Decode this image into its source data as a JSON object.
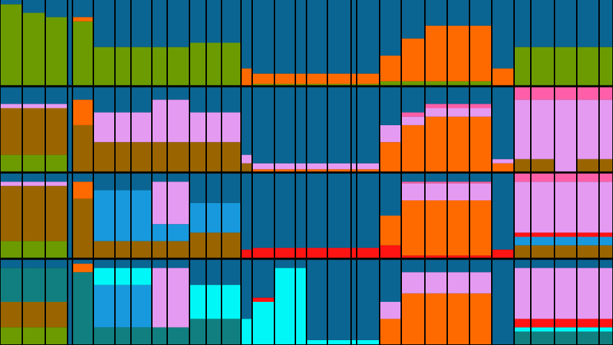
{
  "chart_data": [
    {
      "type": "stacked-bar",
      "ylim": [
        0,
        1
      ],
      "series": [
        {
          "color": "#6b9b00",
          "values": [
            0.95,
            0.85,
            0.8,
            0,
            0.75,
            0.45,
            0.45,
            0.45,
            0.45,
            0.45,
            0.5,
            0.5,
            0.5,
            0,
            0.02,
            0.02,
            0.02,
            0.02,
            0.02,
            0.02,
            0.02,
            0.05,
            0.05,
            0.05,
            0.05,
            0.05,
            0,
            0.45,
            0.45,
            0.45,
            0.45,
            0.45
          ]
        },
        {
          "color": "#ff6a00",
          "values": [
            0,
            0,
            0,
            0,
            0.05,
            0,
            0,
            0,
            0,
            0,
            0,
            0,
            0,
            0.2,
            0.12,
            0.12,
            0.12,
            0.12,
            0.12,
            0.12,
            0.12,
            0.3,
            0.5,
            0.65,
            0.65,
            0.65,
            0.2,
            0,
            0,
            0,
            0,
            0
          ]
        },
        {
          "color": "#0b6592",
          "values": [
            0.05,
            0.15,
            0.2,
            1,
            0.2,
            0.55,
            0.55,
            0.55,
            0.55,
            0.55,
            0.5,
            0.5,
            0.5,
            0.8,
            0.86,
            0.86,
            0.86,
            0.86,
            0.86,
            0.86,
            0.86,
            0.65,
            0.45,
            0.3,
            0.3,
            0.3,
            0.8,
            0.55,
            0.55,
            0.55,
            0.55,
            0.55
          ]
        }
      ]
    },
    {
      "type": "stacked-bar",
      "ylim": [
        0,
        1
      ],
      "series": [
        {
          "color": "#6b9b00",
          "values": [
            0.2,
            0.2,
            0.2,
            0,
            0,
            0,
            0,
            0,
            0,
            0,
            0,
            0,
            0,
            0,
            0,
            0,
            0,
            0,
            0,
            0,
            0,
            0,
            0,
            0,
            0,
            0,
            0,
            0,
            0,
            0,
            0,
            0
          ]
        },
        {
          "color": "#9a6500",
          "values": [
            0.55,
            0.55,
            0.55,
            0,
            0.55,
            0.35,
            0.35,
            0.35,
            0.35,
            0.35,
            0.35,
            0.35,
            0.35,
            0.1,
            0,
            0,
            0,
            0,
            0,
            0,
            0,
            0,
            0,
            0,
            0,
            0,
            0,
            0.15,
            0.15,
            0,
            0.15,
            0.15
          ]
        },
        {
          "color": "#ff6a00",
          "values": [
            0,
            0,
            0,
            0,
            0.3,
            0,
            0,
            0,
            0,
            0,
            0,
            0,
            0,
            0,
            0.03,
            0.03,
            0.03,
            0.03,
            0.03,
            0.03,
            0.03,
            0.35,
            0.55,
            0.65,
            0.65,
            0.65,
            0.1,
            0,
            0,
            0,
            0,
            0
          ]
        },
        {
          "color": "#e59af2",
          "values": [
            0.05,
            0.05,
            0.05,
            0,
            0,
            0.35,
            0.35,
            0.35,
            0.5,
            0.5,
            0.35,
            0.35,
            0.35,
            0.1,
            0.07,
            0.07,
            0.07,
            0.07,
            0.07,
            0.07,
            0.07,
            0.2,
            0.1,
            0.1,
            0.1,
            0.1,
            0.05,
            0.7,
            0.7,
            0.85,
            0.7,
            0.7
          ]
        },
        {
          "color": "#ff5fa8",
          "values": [
            0,
            0,
            0,
            0,
            0,
            0,
            0,
            0,
            0,
            0,
            0,
            0,
            0,
            0,
            0,
            0,
            0,
            0,
            0,
            0,
            0,
            0,
            0.05,
            0.05,
            0.05,
            0.05,
            0,
            0.15,
            0.15,
            0.15,
            0.15,
            0.15
          ]
        },
        {
          "color": "#0b6592",
          "values": [
            0.2,
            0.2,
            0.2,
            1,
            0.15,
            0.3,
            0.3,
            0.3,
            0.15,
            0.15,
            0.3,
            0.3,
            0.3,
            0.8,
            0.9,
            0.9,
            0.9,
            0.9,
            0.9,
            0.9,
            0.9,
            0.45,
            0.3,
            0.2,
            0.2,
            0.2,
            0.85,
            0,
            0,
            0,
            0,
            0
          ]
        }
      ]
    },
    {
      "type": "stacked-bar",
      "ylim": [
        0,
        1
      ],
      "series": [
        {
          "color": "#6b9b00",
          "values": [
            0.2,
            0.2,
            0.2,
            0,
            0,
            0,
            0,
            0,
            0,
            0,
            0,
            0,
            0,
            0,
            0,
            0,
            0,
            0,
            0,
            0,
            0,
            0,
            0,
            0,
            0,
            0,
            0,
            0,
            0,
            0,
            0,
            0
          ]
        },
        {
          "color": "#9a6500",
          "values": [
            0.65,
            0.65,
            0.65,
            0,
            0.7,
            0.2,
            0.2,
            0.2,
            0.2,
            0.2,
            0.3,
            0.3,
            0.3,
            0,
            0,
            0,
            0,
            0,
            0,
            0,
            0,
            0,
            0,
            0,
            0,
            0,
            0,
            0.15,
            0.15,
            0.15,
            0.15,
            0.15
          ]
        },
        {
          "color": "#1899dd",
          "values": [
            0,
            0,
            0,
            0,
            0,
            0.6,
            0.6,
            0.6,
            0.2,
            0.2,
            0.35,
            0.35,
            0.35,
            0,
            0,
            0,
            0,
            0,
            0,
            0,
            0,
            0,
            0,
            0,
            0,
            0,
            0,
            0.1,
            0.1,
            0.1,
            0.1,
            0.1
          ]
        },
        {
          "color": "#ff1414",
          "values": [
            0,
            0,
            0,
            0,
            0,
            0,
            0,
            0,
            0,
            0,
            0,
            0,
            0,
            0.1,
            0.12,
            0.12,
            0.12,
            0.12,
            0.12,
            0.12,
            0.12,
            0.15,
            0.03,
            0.03,
            0.03,
            0.03,
            0.1,
            0.05,
            0.05,
            0.05,
            0.05,
            0.05
          ]
        },
        {
          "color": "#ff6a00",
          "values": [
            0,
            0,
            0,
            0,
            0.2,
            0,
            0,
            0,
            0,
            0,
            0,
            0,
            0,
            0,
            0,
            0,
            0,
            0,
            0,
            0,
            0,
            0.35,
            0.65,
            0.65,
            0.65,
            0.65,
            0,
            0,
            0,
            0,
            0,
            0
          ]
        },
        {
          "color": "#e59af2",
          "values": [
            0.05,
            0.05,
            0.05,
            0,
            0,
            0,
            0,
            0,
            0.5,
            0.5,
            0,
            0,
            0,
            0,
            0,
            0,
            0,
            0,
            0,
            0,
            0,
            0,
            0.2,
            0.2,
            0.2,
            0.2,
            0,
            0.6,
            0.6,
            0.6,
            0.6,
            0.6
          ]
        },
        {
          "color": "#ff5fa8",
          "values": [
            0,
            0,
            0,
            0,
            0,
            0,
            0,
            0,
            0,
            0,
            0,
            0,
            0,
            0,
            0,
            0,
            0,
            0,
            0,
            0,
            0,
            0,
            0.02,
            0.02,
            0.02,
            0.02,
            0,
            0.1,
            0.1,
            0.1,
            0.1,
            0.1
          ]
        },
        {
          "color": "#0b6592",
          "values": [
            0.1,
            0.1,
            0.1,
            1,
            0.1,
            0.2,
            0.2,
            0.2,
            0.1,
            0.1,
            0.35,
            0.35,
            0.35,
            0.9,
            0.88,
            0.88,
            0.88,
            0.88,
            0.88,
            0.88,
            0.88,
            0.5,
            0.1,
            0.1,
            0.1,
            0.1,
            0.9,
            0,
            0,
            0,
            0,
            0
          ]
        }
      ]
    },
    {
      "type": "stacked-bar",
      "ylim": [
        0,
        1
      ],
      "series": [
        {
          "color": "#6b9b00",
          "values": [
            0.2,
            0.2,
            0.2,
            0,
            0,
            0,
            0,
            0,
            0,
            0,
            0,
            0,
            0,
            0,
            0,
            0,
            0,
            0,
            0,
            0,
            0,
            0,
            0,
            0,
            0,
            0,
            0,
            0,
            0,
            0,
            0,
            0
          ]
        },
        {
          "color": "#9a6500",
          "values": [
            0.3,
            0.3,
            0.3,
            0,
            0,
            0,
            0,
            0,
            0,
            0,
            0,
            0,
            0,
            0,
            0,
            0,
            0,
            0,
            0,
            0,
            0,
            0,
            0,
            0,
            0,
            0,
            0,
            0,
            0,
            0,
            0,
            0
          ]
        },
        {
          "color": "#117f7f",
          "values": [
            0.4,
            0.4,
            0.4,
            0,
            0.85,
            0.2,
            0.2,
            0.2,
            0.2,
            0.2,
            0.3,
            0.3,
            0.3,
            0,
            0,
            0,
            0,
            0,
            0,
            0,
            0,
            0,
            0,
            0,
            0,
            0,
            0,
            0.15,
            0.15,
            0.15,
            0.15,
            0.15
          ]
        },
        {
          "color": "#1899dd",
          "values": [
            0,
            0,
            0,
            0,
            0,
            0.5,
            0.5,
            0.5,
            0,
            0,
            0,
            0,
            0,
            0,
            0,
            0,
            0,
            0,
            0,
            0,
            0,
            0,
            0,
            0,
            0,
            0,
            0,
            0,
            0,
            0,
            0,
            0
          ]
        },
        {
          "color": "#00f7f7",
          "values": [
            0,
            0,
            0,
            0,
            0,
            0.2,
            0.2,
            0.2,
            0,
            0,
            0.4,
            0.4,
            0.4,
            0.3,
            0.5,
            0.9,
            0.9,
            0.05,
            0.05,
            0.05,
            0.05,
            0,
            0,
            0,
            0,
            0,
            0,
            0.05,
            0.05,
            0.05,
            0.05,
            0.05
          ]
        },
        {
          "color": "#ff1414",
          "values": [
            0,
            0,
            0,
            0,
            0,
            0,
            0,
            0,
            0,
            0,
            0,
            0,
            0,
            0,
            0.05,
            0,
            0,
            0,
            0,
            0,
            0,
            0,
            0,
            0,
            0,
            0,
            0,
            0.1,
            0.1,
            0.1,
            0.1,
            0.1
          ]
        },
        {
          "color": "#ff6a00",
          "values": [
            0,
            0,
            0,
            0,
            0.1,
            0,
            0,
            0,
            0,
            0,
            0,
            0,
            0,
            0,
            0,
            0,
            0,
            0,
            0,
            0,
            0,
            0.3,
            0.6,
            0.6,
            0.6,
            0.6,
            0,
            0,
            0,
            0,
            0,
            0
          ]
        },
        {
          "color": "#e59af2",
          "values": [
            0,
            0,
            0,
            0,
            0,
            0,
            0,
            0,
            0.7,
            0.7,
            0,
            0,
            0,
            0,
            0,
            0,
            0,
            0,
            0,
            0,
            0,
            0.2,
            0.25,
            0.25,
            0.25,
            0.25,
            0,
            0.6,
            0.6,
            0.6,
            0.6,
            0.6
          ]
        },
        {
          "color": "#0b6592",
          "values": [
            0.1,
            0.1,
            0.1,
            1,
            0.05,
            0.1,
            0.1,
            0.1,
            0.1,
            0.1,
            0.3,
            0.3,
            0.3,
            0.7,
            0.45,
            0.1,
            0.1,
            0.95,
            0.95,
            0.95,
            0.95,
            0.5,
            0.15,
            0.15,
            0.15,
            0.15,
            1,
            0.1,
            0.1,
            0.1,
            0.1,
            0.1
          ]
        }
      ]
    }
  ]
}
